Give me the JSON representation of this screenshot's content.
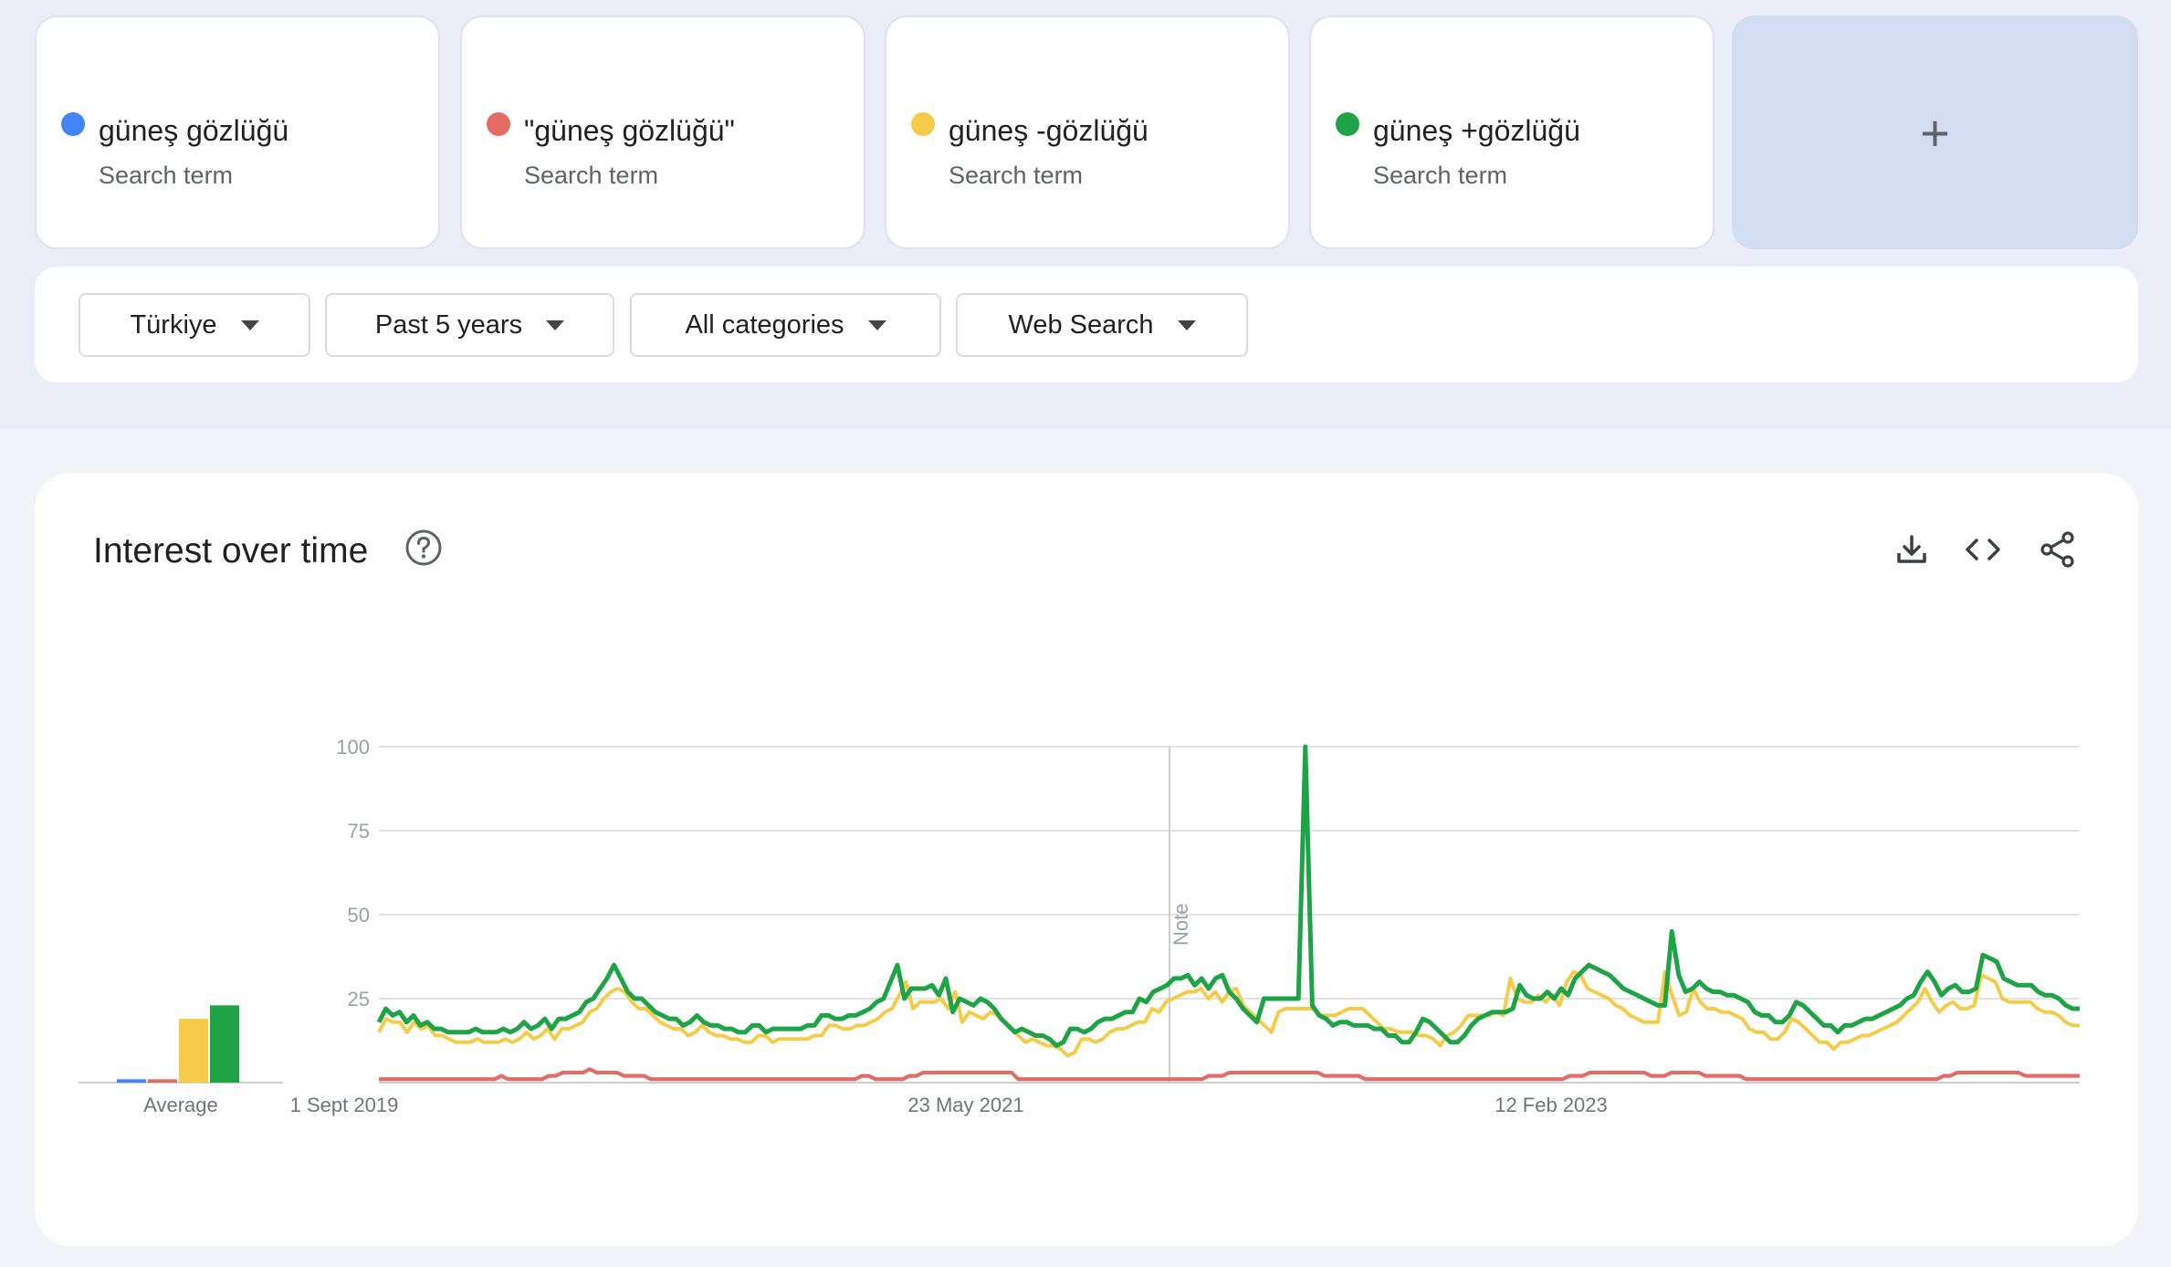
{
  "search_terms": [
    {
      "name": "güneş gözlüğü",
      "subtitle": "Search term",
      "color": "#4285f4"
    },
    {
      "name": "\"güneş gözlüğü\"",
      "subtitle": "Search term",
      "color": "#e56c63"
    },
    {
      "name": "güneş -gözlüğü",
      "subtitle": "Search term",
      "color": "#f4cc4a"
    },
    {
      "name": "güneş +gözlüğü",
      "subtitle": "Search term",
      "color": "#1ea446"
    }
  ],
  "add_term": {
    "symbol": "+"
  },
  "filters": {
    "region": "Türkiye",
    "time_range": "Past 5 years",
    "category": "All categories",
    "search_type": "Web Search"
  },
  "interest_card": {
    "title": "Interest over time",
    "help_icon": "help-circle-icon",
    "toolbar_icons": [
      "download-icon",
      "embed-code-icon",
      "share-icon"
    ]
  },
  "chart_data": {
    "type": "line",
    "ylim": [
      0,
      100
    ],
    "y_ticks": [
      "100",
      "75",
      "50",
      "25"
    ],
    "x_tick_labels": [
      "1 Sept 2019",
      "23 May 2021",
      "12 Feb 2023"
    ],
    "note_label": "Note",
    "average_label": "Average",
    "average_values": [
      1,
      1,
      19,
      23
    ],
    "series": [
      {
        "name": "güneş gözlüğü",
        "color": "#4285f4",
        "values": [
          1,
          1,
          1,
          1,
          1,
          1,
          1,
          1,
          1,
          1,
          1,
          1,
          1,
          1,
          1,
          1,
          1,
          1,
          2,
          1,
          1,
          1,
          1,
          1,
          1,
          2,
          2,
          3,
          3,
          3,
          3,
          4,
          3,
          3,
          3,
          3,
          2,
          2,
          2,
          2,
          1,
          1,
          1,
          1,
          1,
          1,
          1,
          1,
          1,
          1,
          1,
          1,
          1,
          1,
          1,
          1,
          1,
          1,
          1,
          1,
          1,
          1,
          1,
          1,
          1,
          1,
          1,
          1,
          1,
          1,
          1,
          2,
          2,
          1,
          1,
          1,
          1,
          1,
          2,
          2,
          3,
          3,
          3,
          3,
          3,
          3,
          3,
          3,
          3,
          3,
          3,
          3,
          3,
          3,
          1,
          1,
          1,
          1,
          1,
          1,
          1,
          1,
          1,
          1,
          1,
          1,
          1,
          1,
          1,
          1,
          1,
          1,
          1,
          1,
          1,
          1,
          1,
          1,
          1,
          1,
          1,
          1,
          2,
          2,
          2,
          3,
          3,
          3,
          3,
          3,
          3,
          3,
          3,
          3,
          3,
          3,
          3,
          3,
          3,
          2,
          2,
          2,
          2,
          2,
          2,
          1,
          1,
          1,
          1,
          1,
          1,
          1,
          1,
          1,
          1,
          1,
          1,
          1,
          1,
          1,
          1,
          1,
          1,
          1,
          1,
          1,
          1,
          1,
          1,
          1,
          1,
          1,
          1,
          1,
          1,
          2,
          2,
          2,
          3,
          3,
          3,
          3,
          3,
          3,
          3,
          3,
          3,
          2,
          2,
          2,
          3,
          3,
          3,
          3,
          3,
          2,
          2,
          2,
          2,
          2,
          2,
          1,
          1,
          1,
          1,
          1,
          1,
          1,
          1,
          1,
          1,
          1,
          1,
          1,
          1,
          1,
          1,
          1,
          1,
          1,
          1,
          1,
          1,
          1,
          1,
          1,
          1,
          1,
          1,
          1,
          2,
          2,
          3,
          3,
          3,
          3,
          3,
          3,
          3,
          3,
          3,
          3,
          2,
          2,
          2,
          2,
          2,
          2,
          2,
          2,
          2
        ]
      },
      {
        "name": "\"güneş gözlüğü\"",
        "color": "#e56c63",
        "values": [
          1,
          1,
          1,
          1,
          1,
          1,
          1,
          1,
          1,
          1,
          1,
          1,
          1,
          1,
          1,
          1,
          1,
          1,
          2,
          1,
          1,
          1,
          1,
          1,
          1,
          2,
          2,
          3,
          3,
          3,
          3,
          4,
          3,
          3,
          3,
          3,
          2,
          2,
          2,
          2,
          1,
          1,
          1,
          1,
          1,
          1,
          1,
          1,
          1,
          1,
          1,
          1,
          1,
          1,
          1,
          1,
          1,
          1,
          1,
          1,
          1,
          1,
          1,
          1,
          1,
          1,
          1,
          1,
          1,
          1,
          1,
          2,
          2,
          1,
          1,
          1,
          1,
          1,
          2,
          2,
          3,
          3,
          3,
          3,
          3,
          3,
          3,
          3,
          3,
          3,
          3,
          3,
          3,
          3,
          1,
          1,
          1,
          1,
          1,
          1,
          1,
          1,
          1,
          1,
          1,
          1,
          1,
          1,
          1,
          1,
          1,
          1,
          1,
          1,
          1,
          1,
          1,
          1,
          1,
          1,
          1,
          1,
          2,
          2,
          2,
          3,
          3,
          3,
          3,
          3,
          3,
          3,
          3,
          3,
          3,
          3,
          3,
          3,
          3,
          2,
          2,
          2,
          2,
          2,
          2,
          1,
          1,
          1,
          1,
          1,
          1,
          1,
          1,
          1,
          1,
          1,
          1,
          1,
          1,
          1,
          1,
          1,
          1,
          1,
          1,
          1,
          1,
          1,
          1,
          1,
          1,
          1,
          1,
          1,
          1,
          2,
          2,
          2,
          3,
          3,
          3,
          3,
          3,
          3,
          3,
          3,
          3,
          2,
          2,
          2,
          3,
          3,
          3,
          3,
          3,
          2,
          2,
          2,
          2,
          2,
          2,
          1,
          1,
          1,
          1,
          1,
          1,
          1,
          1,
          1,
          1,
          1,
          1,
          1,
          1,
          1,
          1,
          1,
          1,
          1,
          1,
          1,
          1,
          1,
          1,
          1,
          1,
          1,
          1,
          1,
          2,
          2,
          3,
          3,
          3,
          3,
          3,
          3,
          3,
          3,
          3,
          3,
          2,
          2,
          2,
          2,
          2,
          2,
          2,
          2,
          2
        ]
      },
      {
        "name": "güneş -gözlüğü",
        "color": "#f4cc4a",
        "values": [
          15,
          19,
          18,
          18,
          15,
          18,
          16,
          17,
          14,
          14,
          13,
          12,
          12,
          12,
          13,
          12,
          12,
          12,
          13,
          12,
          13,
          15,
          13,
          14,
          16,
          13,
          16,
          16,
          17,
          18,
          21,
          22,
          25,
          27,
          28,
          27,
          24,
          22,
          22,
          20,
          18,
          17,
          16,
          16,
          14,
          15,
          17,
          15,
          14,
          14,
          13,
          13,
          12,
          12,
          14,
          14,
          12,
          13,
          13,
          13,
          13,
          13,
          14,
          14,
          17,
          17,
          16,
          16,
          17,
          17,
          18,
          19,
          21,
          22,
          26,
          30,
          22,
          24,
          24,
          24,
          25,
          22,
          27,
          18,
          21,
          20,
          19,
          21,
          20,
          18,
          16,
          14,
          12,
          13,
          12,
          11,
          11,
          10,
          8,
          9,
          13,
          13,
          12,
          13,
          15,
          16,
          16,
          17,
          18,
          18,
          22,
          21,
          24,
          25,
          26,
          27,
          27,
          28,
          25,
          27,
          24,
          27,
          28,
          23,
          21,
          19,
          17,
          15,
          21,
          22,
          22,
          22,
          22,
          22,
          20,
          20,
          20,
          21,
          22,
          22,
          22,
          20,
          18,
          16,
          16,
          15,
          15,
          15,
          14,
          14,
          13,
          11,
          14,
          15,
          17,
          20,
          20,
          20,
          20,
          21,
          20,
          31,
          25,
          24,
          24,
          26,
          24,
          26,
          23,
          30,
          33,
          32,
          28,
          27,
          26,
          25,
          23,
          22,
          20,
          19,
          18,
          18,
          18,
          33,
          26,
          20,
          21,
          28,
          24,
          22,
          22,
          21,
          21,
          20,
          19,
          16,
          15,
          15,
          13,
          13,
          15,
          19,
          18,
          16,
          14,
          12,
          12,
          10,
          12,
          12,
          13,
          14,
          14,
          15,
          16,
          17,
          18,
          20,
          22,
          24,
          28,
          24,
          21,
          23,
          24,
          22,
          22,
          23,
          32,
          31,
          30,
          25,
          24,
          24,
          24,
          24,
          22,
          21,
          21,
          20,
          18,
          17,
          17
        ]
      },
      {
        "name": "güneş +gözlüğü",
        "color": "#1ea446",
        "values": [
          18,
          22,
          20,
          21,
          18,
          20,
          17,
          18,
          16,
          16,
          15,
          15,
          15,
          15,
          16,
          15,
          15,
          15,
          16,
          15,
          16,
          18,
          16,
          17,
          19,
          16,
          19,
          19,
          20,
          21,
          24,
          25,
          28,
          31,
          35,
          31,
          27,
          25,
          25,
          23,
          21,
          20,
          19,
          19,
          17,
          18,
          20,
          18,
          17,
          17,
          16,
          16,
          15,
          15,
          17,
          17,
          15,
          16,
          16,
          16,
          16,
          16,
          17,
          17,
          20,
          20,
          19,
          19,
          20,
          20,
          21,
          22,
          24,
          25,
          30,
          35,
          25,
          28,
          28,
          28,
          29,
          26,
          31,
          21,
          25,
          24,
          23,
          25,
          24,
          22,
          19,
          17,
          15,
          16,
          15,
          14,
          14,
          13,
          11,
          12,
          16,
          16,
          15,
          16,
          18,
          19,
          19,
          20,
          21,
          21,
          25,
          24,
          27,
          28,
          29,
          31,
          31,
          32,
          29,
          31,
          28,
          31,
          32,
          27,
          25,
          22,
          20,
          18,
          25,
          25,
          25,
          25,
          25,
          25,
          100,
          23,
          20,
          19,
          17,
          18,
          18,
          17,
          17,
          17,
          16,
          16,
          14,
          14,
          12,
          12,
          15,
          19,
          18,
          16,
          14,
          12,
          12,
          14,
          17,
          19,
          20,
          21,
          21,
          21,
          22,
          29,
          26,
          25,
          25,
          27,
          25,
          28,
          26,
          31,
          33,
          35,
          34,
          33,
          32,
          30,
          28,
          27,
          26,
          25,
          24,
          23,
          23,
          45,
          32,
          27,
          28,
          30,
          28,
          27,
          27,
          26,
          26,
          25,
          24,
          21,
          20,
          20,
          18,
          18,
          20,
          24,
          23,
          21,
          19,
          17,
          17,
          15,
          17,
          17,
          18,
          19,
          19,
          20,
          21,
          22,
          23,
          25,
          26,
          30,
          33,
          30,
          26,
          28,
          29,
          27,
          27,
          28,
          38,
          37,
          36,
          31,
          30,
          29,
          29,
          29,
          27,
          26,
          26,
          25,
          23,
          22,
          22
        ]
      }
    ]
  }
}
